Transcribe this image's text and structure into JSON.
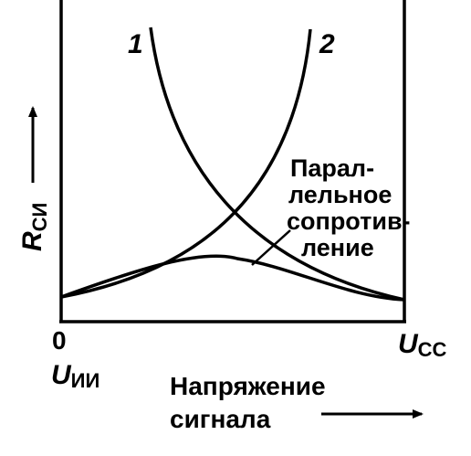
{
  "curves": {
    "curve1": "1",
    "curve2": "2"
  },
  "annotation": {
    "lines": [
      "Парал-",
      "лельное",
      "сопротив-",
      "ление"
    ]
  },
  "y_axis": {
    "symbol": "R",
    "subscript": "СИ"
  },
  "x_axis": {
    "origin": "0",
    "left_symbol": "U",
    "left_subscript": "ИИ",
    "right_symbol": "U",
    "right_subscript": "СС",
    "title_lines": [
      "Напряжение",
      "сигнала"
    ]
  }
}
